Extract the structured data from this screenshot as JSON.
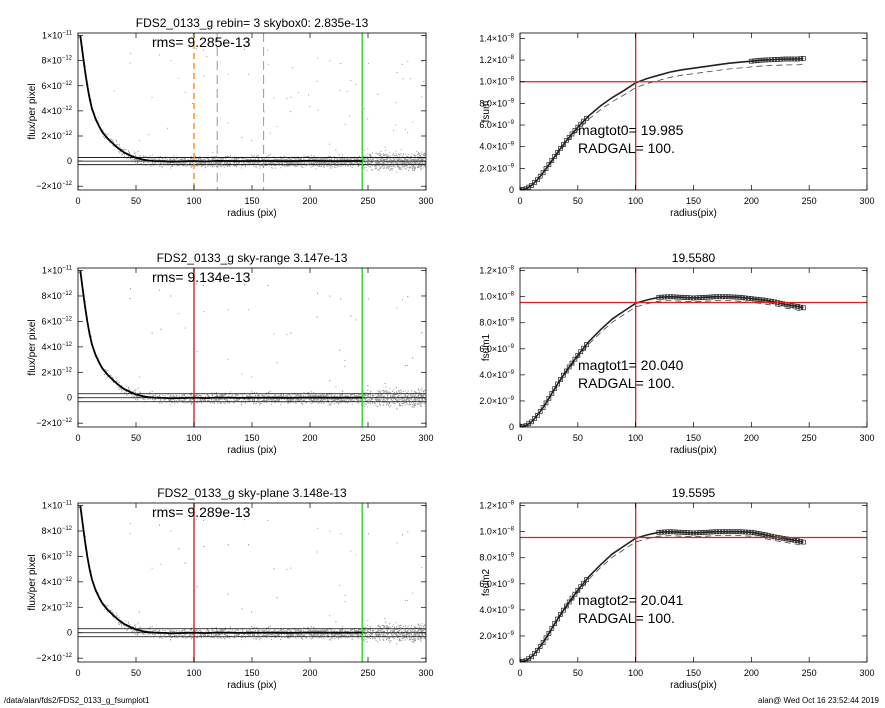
{
  "footer": {
    "left": "/data/alan/fds2/FDS2_0133_g_fsumplot1",
    "right": "alan@  Wed Oct 16 23:52:44 2019"
  },
  "colors": {
    "points": "#9a9a9a",
    "profile": "#000000",
    "red": "#e0201e",
    "green": "#22dd22",
    "orange": "#ff8c1a",
    "dash": "#999999"
  },
  "chart_data": [
    {
      "type": "scatter",
      "title": "FDS2_0133_g rebin= 3    skybox0:  2.835e-13",
      "annotation": "rms= 9.285e-13",
      "xlabel": "radius (pix)",
      "ylabel": "flux/per pixel",
      "xlim": [
        0,
        300
      ],
      "ylim": [
        -2.3e-12,
        1.02e-11
      ],
      "xticks": [
        0,
        50,
        100,
        150,
        200,
        250,
        300
      ],
      "yticks": [
        {
          "v": -2e-12,
          "m": "−2×10",
          "e": "−12"
        },
        {
          "v": 0,
          "m": "0",
          "e": ""
        },
        {
          "v": 2e-12,
          "m": "2×10",
          "e": "−12"
        },
        {
          "v": 4e-12,
          "m": "4×10",
          "e": "−12"
        },
        {
          "v": 6e-12,
          "m": "6×10",
          "e": "−12"
        },
        {
          "v": 8e-12,
          "m": "8×10",
          "e": "−12"
        },
        {
          "v": 1e-11,
          "m": "1×10",
          "e": "−11"
        }
      ],
      "profile_x": [
        2,
        4,
        6,
        8,
        10,
        12,
        15,
        18,
        21,
        25,
        30,
        35,
        40,
        45,
        50,
        55,
        60,
        65,
        70,
        75,
        80,
        90,
        100,
        110,
        120,
        140,
        160,
        180,
        200,
        220,
        245
      ],
      "profile_y": [
        1e-11,
        8.6e-12,
        7.2e-12,
        6e-12,
        5e-12,
        4.2e-12,
        3.4e-12,
        2.8e-12,
        2.3e-12,
        1.85e-12,
        1.4e-12,
        1e-12,
        6.8e-13,
        4.4e-13,
        2.6e-13,
        1.4e-13,
        6e-14,
        1e-14,
        -1e-14,
        -1e-14,
        -5e-14,
        -2e-14,
        1e-14,
        -3e-14,
        2e-14,
        -1e-14,
        1e-14,
        -1e-14,
        2e-14,
        0,
        1e-14
      ],
      "hlines": [
        2.835e-13,
        0,
        -2.835e-13
      ],
      "vlines": [
        {
          "x": 100,
          "color": "orange",
          "dash": true
        },
        {
          "x": 120,
          "color": "dash",
          "dash": true
        },
        {
          "x": 160,
          "color": "dash",
          "dash": true
        },
        {
          "x": 245,
          "color": "green",
          "dash": false
        }
      ]
    },
    {
      "type": "line",
      "title": "",
      "xlabel": "radius(pix)",
      "ylabel": "fsum",
      "xlim": [
        0,
        300
      ],
      "ylim": [
        0,
        1.45e-08
      ],
      "xticks": [
        0,
        50,
        100,
        150,
        200,
        250,
        300
      ],
      "yticks": [
        {
          "v": 0,
          "m": "0",
          "e": ""
        },
        {
          "v": 2e-09,
          "m": "2.0×10",
          "e": "−9"
        },
        {
          "v": 4e-09,
          "m": "4.0×10",
          "e": "−9"
        },
        {
          "v": 6e-09,
          "m": "6.0×10",
          "e": "−9"
        },
        {
          "v": 8e-09,
          "m": "8.0×10",
          "e": "−9"
        },
        {
          "v": 1e-08,
          "m": "1.0×10",
          "e": "−8"
        },
        {
          "v": 1.2e-08,
          "m": "1.2×10",
          "e": "−8"
        },
        {
          "v": 1.4e-08,
          "m": "1.4×10",
          "e": "−8"
        }
      ],
      "curve_x": [
        0,
        5,
        10,
        15,
        20,
        25,
        30,
        35,
        40,
        50,
        60,
        70,
        80,
        90,
        100,
        110,
        120,
        130,
        140,
        150,
        160,
        170,
        180,
        190,
        200,
        210,
        220,
        230,
        240,
        245
      ],
      "curve_y": [
        0,
        1.1e-10,
        4.3e-10,
        9.5e-10,
        1.6e-09,
        2.35e-09,
        3.1e-09,
        3.85e-09,
        4.55e-09,
        5.8e-09,
        6.9e-09,
        7.8e-09,
        8.55e-09,
        9.2e-09,
        9.9e-09,
        1.03e-08,
        1.06e-08,
        1.09e-08,
        1.11e-08,
        1.125e-08,
        1.14e-08,
        1.155e-08,
        1.17e-08,
        1.18e-08,
        1.19e-08,
        1.2e-08,
        1.205e-08,
        1.21e-08,
        1.21e-08,
        1.215e-08
      ],
      "dash_scale": 0.955,
      "marker_from_x": 200,
      "hline": 1e-08,
      "vline": 100,
      "annotations": [
        "magtot0=  19.985",
        "RADGAL=    100."
      ]
    },
    {
      "type": "scatter",
      "title": "FDS2_0133_g sky-range  3.147e-13",
      "annotation": "rms= 9.134e-13",
      "xlabel": "radius (pix)",
      "ylabel": "flux/per pixel",
      "xlim": [
        0,
        300
      ],
      "ylim": [
        -2.3e-12,
        1.02e-11
      ],
      "xticks": [
        0,
        50,
        100,
        150,
        200,
        250,
        300
      ],
      "yticks": [
        {
          "v": -2e-12,
          "m": "−2×10",
          "e": "−12"
        },
        {
          "v": 0,
          "m": "0",
          "e": ""
        },
        {
          "v": 2e-12,
          "m": "2×10",
          "e": "−12"
        },
        {
          "v": 4e-12,
          "m": "4×10",
          "e": "−12"
        },
        {
          "v": 6e-12,
          "m": "6×10",
          "e": "−12"
        },
        {
          "v": 8e-12,
          "m": "8×10",
          "e": "−12"
        },
        {
          "v": 1e-11,
          "m": "1×10",
          "e": "−11"
        }
      ],
      "profile_x": [
        2,
        4,
        6,
        8,
        10,
        12,
        15,
        18,
        21,
        25,
        30,
        35,
        40,
        45,
        50,
        55,
        60,
        65,
        70,
        75,
        80,
        90,
        100,
        110,
        120,
        140,
        160,
        180,
        200,
        220,
        245
      ],
      "profile_y": [
        1e-11,
        8.6e-12,
        7.2e-12,
        6e-12,
        5e-12,
        4.2e-12,
        3.4e-12,
        2.8e-12,
        2.3e-12,
        1.85e-12,
        1.4e-12,
        1e-12,
        6.8e-13,
        4.4e-13,
        2.6e-13,
        1.4e-13,
        6e-14,
        1e-14,
        -1e-14,
        -1e-14,
        -5e-14,
        -2e-14,
        1e-14,
        -3e-14,
        2e-14,
        -1e-14,
        1e-14,
        -1e-14,
        2e-14,
        0,
        1e-14
      ],
      "hlines": [
        3.147e-13,
        0,
        -3.147e-13
      ],
      "vlines": [
        {
          "x": 100,
          "color": "red",
          "dash": false
        },
        {
          "x": 245,
          "color": "green",
          "dash": false
        }
      ]
    },
    {
      "type": "line",
      "title": "19.5580",
      "xlabel": "radius(pix)",
      "ylabel": "fsum1",
      "xlim": [
        0,
        300
      ],
      "ylim": [
        0,
        1.22e-08
      ],
      "xticks": [
        0,
        50,
        100,
        150,
        200,
        250,
        300
      ],
      "yticks": [
        {
          "v": 0,
          "m": "0",
          "e": ""
        },
        {
          "v": 2e-09,
          "m": "2.0×10",
          "e": "−9"
        },
        {
          "v": 4e-09,
          "m": "4.0×10",
          "e": "−9"
        },
        {
          "v": 6e-09,
          "m": "6.0×10",
          "e": "−9"
        },
        {
          "v": 8e-09,
          "m": "8.0×10",
          "e": "−9"
        },
        {
          "v": 1e-08,
          "m": "1.0×10",
          "e": "−8"
        },
        {
          "v": 1.2e-08,
          "m": "1.2×10",
          "e": "−8"
        }
      ],
      "curve_x": [
        0,
        5,
        10,
        15,
        20,
        25,
        30,
        35,
        40,
        50,
        60,
        70,
        80,
        90,
        100,
        110,
        120,
        130,
        140,
        150,
        160,
        170,
        180,
        190,
        200,
        210,
        220,
        230,
        240,
        245
      ],
      "curve_y": [
        0,
        1e-10,
        4e-10,
        9e-10,
        1.5e-09,
        2.2e-09,
        2.95e-09,
        3.65e-09,
        4.3e-09,
        5.5e-09,
        6.6e-09,
        7.5e-09,
        8.3e-09,
        8.9e-09,
        9.5e-09,
        9.75e-09,
        9.95e-09,
        1e-08,
        9.95e-09,
        9.9e-09,
        9.95e-09,
        1e-08,
        1e-08,
        9.95e-09,
        9.85e-09,
        9.75e-09,
        9.6e-09,
        9.4e-09,
        9.25e-09,
        9.15e-09
      ],
      "dash_scale": 0.97,
      "marker_from_x": 120,
      "hline": 9.55e-09,
      "vline": 100,
      "annotations": [
        "magtot1=  20.040",
        "RADGAL=    100."
      ]
    },
    {
      "type": "scatter",
      "title": "FDS2_0133_g sky-plane  3.148e-13",
      "annotation": "rms= 9.289e-13",
      "xlabel": "radius (pix)",
      "ylabel": "flux/per pixel",
      "xlim": [
        0,
        300
      ],
      "ylim": [
        -2.3e-12,
        1.02e-11
      ],
      "xticks": [
        0,
        50,
        100,
        150,
        200,
        250,
        300
      ],
      "yticks": [
        {
          "v": -2e-12,
          "m": "−2×10",
          "e": "−12"
        },
        {
          "v": 0,
          "m": "0",
          "e": ""
        },
        {
          "v": 2e-12,
          "m": "2×10",
          "e": "−12"
        },
        {
          "v": 4e-12,
          "m": "4×10",
          "e": "−12"
        },
        {
          "v": 6e-12,
          "m": "6×10",
          "e": "−12"
        },
        {
          "v": 8e-12,
          "m": "8×10",
          "e": "−12"
        },
        {
          "v": 1e-11,
          "m": "1×10",
          "e": "−11"
        }
      ],
      "profile_x": [
        2,
        4,
        6,
        8,
        10,
        12,
        15,
        18,
        21,
        25,
        30,
        35,
        40,
        45,
        50,
        55,
        60,
        65,
        70,
        75,
        80,
        90,
        100,
        110,
        120,
        140,
        160,
        180,
        200,
        220,
        245
      ],
      "profile_y": [
        1e-11,
        8.6e-12,
        7.2e-12,
        6e-12,
        5e-12,
        4.2e-12,
        3.4e-12,
        2.8e-12,
        2.3e-12,
        1.85e-12,
        1.4e-12,
        1e-12,
        6.8e-13,
        4.4e-13,
        2.6e-13,
        1.4e-13,
        6e-14,
        1e-14,
        -1e-14,
        -1e-14,
        -5e-14,
        -2e-14,
        1e-14,
        -3e-14,
        2e-14,
        -1e-14,
        1e-14,
        -1e-14,
        2e-14,
        0,
        1e-14
      ],
      "hlines": [
        3.148e-13,
        0,
        -3.148e-13
      ],
      "vlines": [
        {
          "x": 100,
          "color": "red",
          "dash": false
        },
        {
          "x": 245,
          "color": "green",
          "dash": false
        }
      ]
    },
    {
      "type": "line",
      "title": "19.5595",
      "xlabel": "radius(pix)",
      "ylabel": "fsum2",
      "xlim": [
        0,
        300
      ],
      "ylim": [
        0,
        1.22e-08
      ],
      "xticks": [
        0,
        50,
        100,
        150,
        200,
        250,
        300
      ],
      "yticks": [
        {
          "v": 0,
          "m": "0",
          "e": ""
        },
        {
          "v": 2e-09,
          "m": "2.0×10",
          "e": "−9"
        },
        {
          "v": 4e-09,
          "m": "4.0×10",
          "e": "−9"
        },
        {
          "v": 6e-09,
          "m": "6.0×10",
          "e": "−9"
        },
        {
          "v": 8e-09,
          "m": "8.0×10",
          "e": "−9"
        },
        {
          "v": 1e-08,
          "m": "1.0×10",
          "e": "−8"
        },
        {
          "v": 1.2e-08,
          "m": "1.2×10",
          "e": "−8"
        }
      ],
      "curve_x": [
        0,
        5,
        10,
        15,
        20,
        25,
        30,
        35,
        40,
        50,
        60,
        70,
        80,
        90,
        100,
        110,
        120,
        130,
        140,
        150,
        160,
        170,
        180,
        190,
        200,
        210,
        220,
        230,
        240,
        245
      ],
      "curve_y": [
        0,
        1e-10,
        4e-10,
        9e-10,
        1.5e-09,
        2.2e-09,
        2.95e-09,
        3.65e-09,
        4.3e-09,
        5.5e-09,
        6.6e-09,
        7.5e-09,
        8.3e-09,
        8.9e-09,
        9.5e-09,
        9.75e-09,
        9.95e-09,
        1e-08,
        9.95e-09,
        9.9e-09,
        9.95e-09,
        1e-08,
        1e-08,
        1e-08,
        9.95e-09,
        9.8e-09,
        9.6e-09,
        9.45e-09,
        9.3e-09,
        9.2e-09
      ],
      "dash_scale": 0.97,
      "marker_from_x": 120,
      "hline": 9.55e-09,
      "vline": 100,
      "annotations": [
        "magtot2=  20.041",
        "RADGAL=    100."
      ]
    }
  ]
}
